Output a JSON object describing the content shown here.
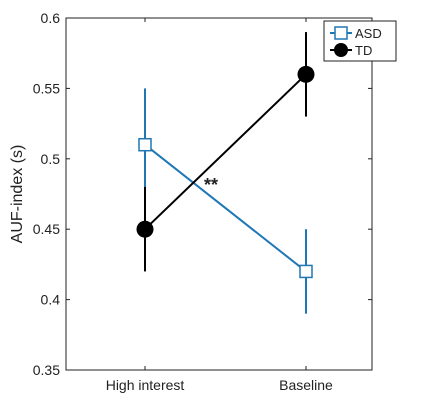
{
  "chart_data": {
    "type": "line",
    "categories": [
      "High interest",
      "Baseline"
    ],
    "ylabel": "AUF-index (s)",
    "xlabel": "",
    "ylim": [
      0.35,
      0.6
    ],
    "yticks": [
      "0.35",
      "0.4",
      "0.45",
      "0.5",
      "0.55",
      "0.6"
    ],
    "grid": false,
    "legend_position": "top-right",
    "series": [
      {
        "name": "ASD",
        "color": "#1f77b4",
        "marker": "open-square",
        "values": [
          0.51,
          0.42
        ],
        "error": [
          0.04,
          0.03
        ]
      },
      {
        "name": "TD",
        "color": "#000000",
        "marker": "filled-circle",
        "values": [
          0.45,
          0.56
        ],
        "error": [
          0.03,
          0.03
        ]
      }
    ],
    "annotation": "**"
  }
}
